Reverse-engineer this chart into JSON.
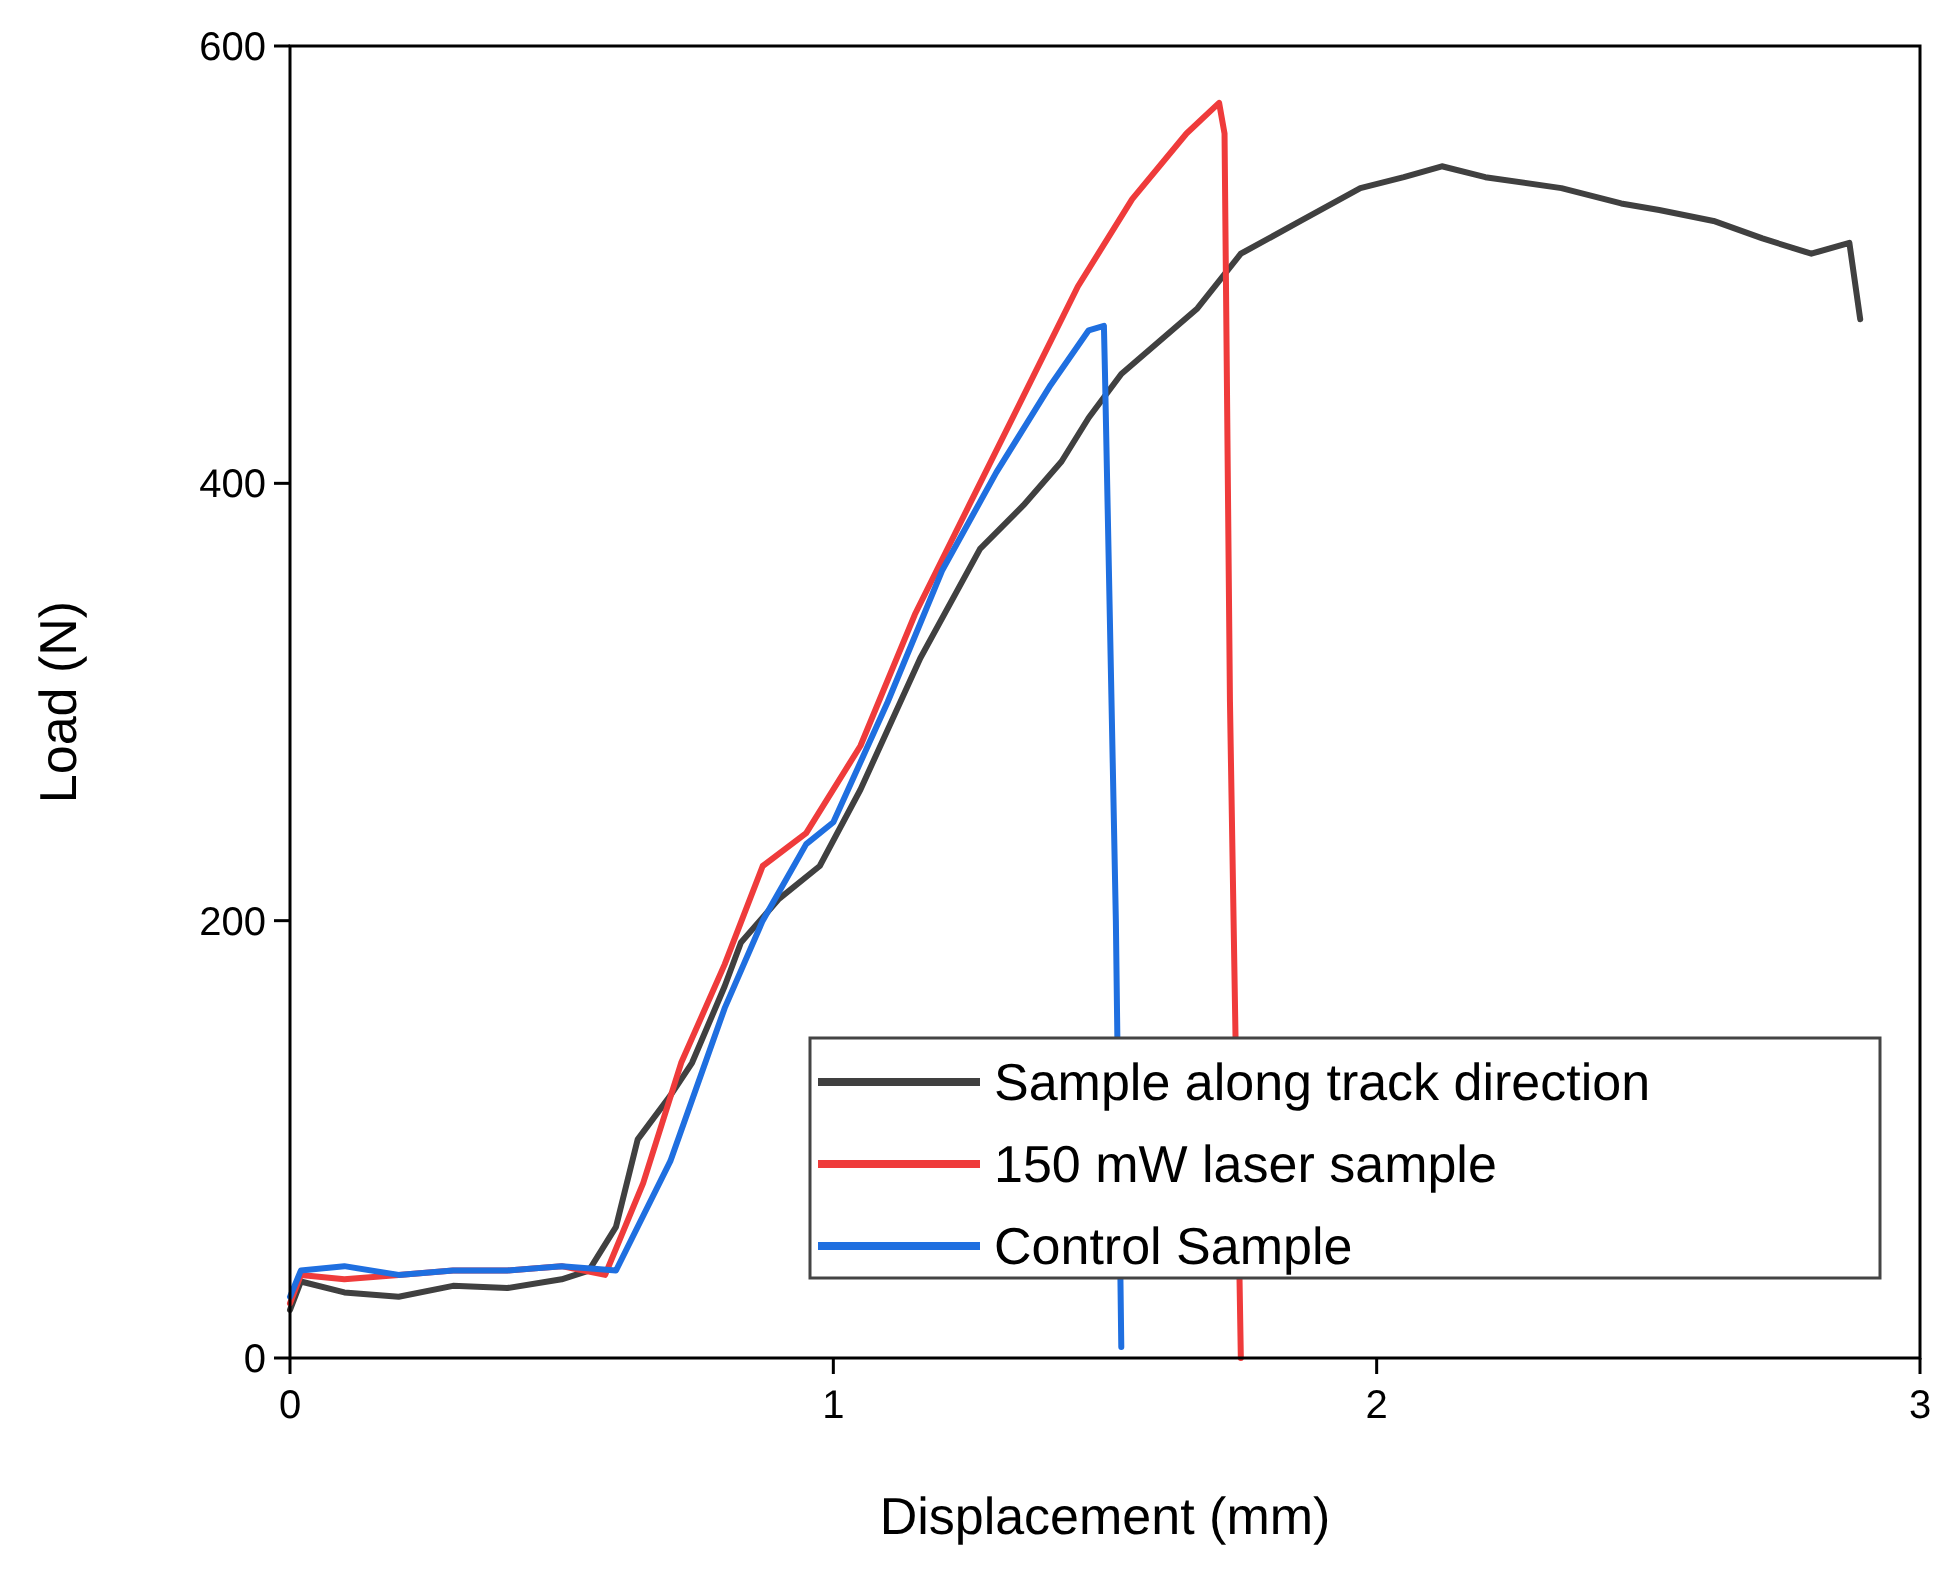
{
  "chart_data": {
    "type": "line",
    "xlabel": "Displacement (mm)",
    "ylabel": "Load (N)",
    "xlim": [
      0,
      3
    ],
    "ylim": [
      0,
      600
    ],
    "xticks": [
      0,
      1,
      2,
      3
    ],
    "yticks": [
      0,
      200,
      400,
      600
    ],
    "grid": false,
    "legend": "bottom right",
    "line_style": "solid",
    "marker": "none",
    "series": [
      {
        "name": "Sample along track direction",
        "color": "#404040",
        "x": [
          0,
          0.02,
          0.1,
          0.2,
          0.3,
          0.4,
          0.5,
          0.55,
          0.6,
          0.64,
          0.7,
          0.74,
          0.8,
          0.83,
          0.9,
          0.975,
          1.05,
          1.16,
          1.27,
          1.35,
          1.42,
          1.47,
          1.53,
          1.6,
          1.67,
          1.75,
          1.86,
          1.97,
          2.05,
          2.12,
          2.2,
          2.34,
          2.45,
          2.52,
          2.62,
          2.71,
          2.8,
          2.87,
          2.89
        ],
        "values": [
          22,
          35,
          30,
          28,
          33,
          32,
          36,
          40,
          60,
          100,
          120,
          135,
          170,
          190,
          210,
          225,
          260,
          320,
          370,
          390,
          410,
          430,
          450,
          465,
          480,
          505,
          520,
          535,
          540,
          545,
          540,
          535,
          528,
          525,
          520,
          512,
          505,
          510,
          475
        ]
      },
      {
        "name": "150 mW laser sample",
        "color": "#ef3b3b",
        "x": [
          0,
          0.02,
          0.1,
          0.2,
          0.3,
          0.4,
          0.5,
          0.58,
          0.65,
          0.72,
          0.8,
          0.87,
          0.95,
          1.05,
          1.15,
          1.25,
          1.35,
          1.45,
          1.55,
          1.65,
          1.71,
          1.72,
          1.73,
          1.75
        ],
        "values": [
          25,
          38,
          36,
          38,
          40,
          40,
          42,
          38,
          80,
          135,
          180,
          225,
          240,
          280,
          340,
          390,
          440,
          490,
          530,
          560,
          574,
          560,
          300,
          0
        ]
      },
      {
        "name": "Control Sample",
        "color": "#1f6fe0",
        "x": [
          0,
          0.02,
          0.1,
          0.2,
          0.3,
          0.4,
          0.5,
          0.6,
          0.7,
          0.8,
          0.87,
          0.95,
          1.0,
          1.1,
          1.2,
          1.3,
          1.4,
          1.47,
          1.498,
          1.5,
          1.52,
          1.53
        ],
        "values": [
          28,
          40,
          42,
          38,
          40,
          40,
          42,
          40,
          90,
          160,
          200,
          235,
          245,
          300,
          360,
          405,
          445,
          470,
          472,
          450,
          200,
          5
        ]
      }
    ]
  }
}
